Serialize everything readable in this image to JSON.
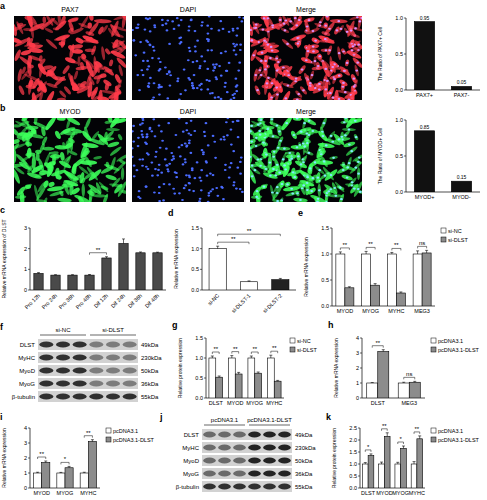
{
  "panels": [
    "a",
    "b",
    "c",
    "d",
    "e",
    "f",
    "g",
    "h",
    "i",
    "j",
    "k"
  ],
  "micrographs": [
    {
      "channels": [
        "PAX7",
        "DAPI",
        "Merge"
      ]
    },
    {
      "channels": [
        "MYOD",
        "DAPI",
        "Merge"
      ]
    }
  ],
  "blots": [
    {
      "conditions": [
        "si-NC",
        "si-DLST"
      ],
      "rows": [
        {
          "protein": "DLST",
          "size": "49kDa"
        },
        {
          "protein": "MyHC",
          "size": "230kDa"
        },
        {
          "protein": "MyoD",
          "size": "50kDa"
        },
        {
          "protein": "MyoG",
          "size": "36kDa"
        },
        {
          "protein": "β-tubulin",
          "size": "55kDa"
        }
      ]
    },
    {
      "conditions": [
        "pcDNA3.1",
        "pcDNA3.1-DLST"
      ],
      "rows": [
        {
          "protein": "DLST",
          "size": "49kDa"
        },
        {
          "protein": "MyHC",
          "size": "230kDa"
        },
        {
          "protein": "MyoD",
          "size": "50kDa"
        },
        {
          "protein": "MyoG",
          "size": "36kDa"
        },
        {
          "protein": "β-tubulin",
          "size": "55kDa"
        }
      ]
    }
  ],
  "chart_data": [
    {
      "type": "bar",
      "y_label": "The Ratio of PAX7+ Cell",
      "categories": [
        "PAX7+",
        "PAX7-"
      ],
      "values": [
        0.95,
        0.05
      ],
      "data_labels": true,
      "color": "#111111",
      "ylim": [
        0,
        1
      ],
      "yticks": [
        {
          "value": 0,
          "label": "0.0"
        },
        0.5,
        {
          "value": 1,
          "label": "1.0"
        }
      ]
    },
    {
      "type": "bar",
      "y_label": "The Ratio of MYOD+ Cell",
      "categories": [
        "MYOD+",
        "MYOD-"
      ],
      "values": [
        0.85,
        0.15
      ],
      "data_labels": true,
      "color": "#111111",
      "ylim": [
        0,
        1
      ],
      "yticks": [
        {
          "value": 0,
          "label": "0.0"
        },
        0.5,
        {
          "value": 1,
          "label": "1.0"
        }
      ]
    },
    {
      "type": "bar",
      "y_label": "Relative mRNA expression of DLST",
      "categories": [
        "Pro 12h",
        "Pro 24h",
        "Pro 36h",
        "Pro 48h",
        "Dif 12h",
        "Dif 24h",
        "Dif 36h",
        "Dif 48h"
      ],
      "values": [
        0.8,
        0.72,
        0.72,
        0.72,
        1.55,
        2.25,
        1.8,
        1.8
      ],
      "errors": [
        0.04,
        0.02,
        0.02,
        0.03,
        0.06,
        0.22,
        0.04,
        0.03
      ],
      "color": "#4a4a4a",
      "ylim": [
        0,
        3
      ],
      "yticks": [
        0,
        1,
        2,
        3
      ],
      "annotations": [
        {
          "text": "**",
          "from": "Pro 48h",
          "to": "Dif 12h"
        }
      ]
    },
    {
      "type": "bar",
      "y_label": "Relative mRNA expression",
      "categories": [
        "si-NC",
        "si-DLST-1",
        "si-DLST-2"
      ],
      "values": [
        1.0,
        0.2,
        0.25
      ],
      "errors": [
        0.06,
        0.02,
        0.03
      ],
      "colors": [
        "#ffffff",
        "#ffffff",
        "#222222"
      ],
      "ylim": [
        0,
        1.5
      ],
      "yticks": [
        {
          "value": 0,
          "label": "0.0"
        },
        0.5,
        {
          "value": 1,
          "label": "1.0"
        },
        1.5
      ],
      "annotations": [
        {
          "text": "**",
          "from": "si-NC",
          "to": "si-DLST-1"
        },
        {
          "text": "**",
          "from": "si-NC",
          "to": "si-DLST-2"
        }
      ]
    },
    {
      "type": "bar",
      "y_label": "Relative mRNA expression",
      "categories": [
        "MYOD",
        "MYOG",
        "MYHC",
        "MEG3"
      ],
      "series": [
        {
          "name": "si-NC",
          "color": "#ffffff",
          "values": [
            1,
            1,
            1,
            1
          ],
          "errors": [
            0.04,
            0.05,
            0.03,
            0.06
          ]
        },
        {
          "name": "si-DLST",
          "color": "#8c8c8c",
          "values": [
            0.35,
            0.4,
            0.25,
            1.02
          ],
          "errors": [
            0.02,
            0.03,
            0.02,
            0.05
          ]
        }
      ],
      "legend": "right",
      "ylim": [
        0,
        1.5
      ],
      "yticks": [
        {
          "value": 0,
          "label": "0.0"
        },
        0.5,
        {
          "value": 1,
          "label": "1.0"
        },
        1.5
      ],
      "annotations": [
        {
          "text": "**",
          "from": "MYOD",
          "to": "MYOD"
        },
        {
          "text": "**",
          "from": "MYOG",
          "to": "MYOG"
        },
        {
          "text": "**",
          "from": "MYHC",
          "to": "MYHC"
        },
        {
          "text": "ns",
          "from": "MEG3",
          "to": "MEG3"
        }
      ]
    },
    {
      "type": "bar",
      "y_label": "Relative protein expression",
      "categories": [
        "DLST",
        "MYOD",
        "MYOG",
        "MYHC"
      ],
      "series": [
        {
          "name": "si-NC",
          "color": "#ffffff",
          "values": [
            1,
            1,
            1,
            1
          ],
          "errors": [
            0.05,
            0.06,
            0.05,
            0.07
          ]
        },
        {
          "name": "si-DLST",
          "color": "#8c8c8c",
          "values": [
            0.52,
            0.6,
            0.62,
            0.42
          ],
          "errors": [
            0.03,
            0.04,
            0.03,
            0.02
          ]
        }
      ],
      "legend": "right",
      "ylim": [
        0,
        1.5
      ],
      "yticks": [
        {
          "value": 0,
          "label": "0.0"
        },
        0.5,
        {
          "value": 1,
          "label": "1.0"
        },
        1.5
      ],
      "annotations": [
        {
          "text": "**",
          "from": "DLST",
          "to": "DLST"
        },
        {
          "text": "**",
          "from": "MYOD",
          "to": "MYOD"
        },
        {
          "text": "**",
          "from": "MYOG",
          "to": "MYOG"
        },
        {
          "text": "**",
          "from": "MYHC",
          "to": "MYHC"
        }
      ]
    },
    {
      "type": "bar",
      "y_label": "Relative mRNA expression",
      "categories": [
        "DLST",
        "MEG3"
      ],
      "series": [
        {
          "name": "pcDNA3.1",
          "color": "#ffffff",
          "values": [
            1,
            1
          ],
          "errors": [
            0.03,
            0.05
          ]
        },
        {
          "name": "pcDNA3.1-DLST",
          "color": "#8c8c8c",
          "values": [
            3.1,
            1.05
          ],
          "errors": [
            0.12,
            0.06
          ]
        }
      ],
      "legend": "right",
      "ylim": [
        0,
        4
      ],
      "yticks": [
        0,
        1,
        2,
        3,
        4
      ],
      "annotations": [
        {
          "text": "**",
          "from": "DLST",
          "to": "DLST"
        },
        {
          "text": "ns",
          "from": "MEG3",
          "to": "MEG3"
        }
      ]
    },
    {
      "type": "bar",
      "y_label": "Relative mRNA expression",
      "categories": [
        "MYOD",
        "MYOG",
        "MYHC"
      ],
      "series": [
        {
          "name": "pcDNA3.1",
          "color": "#ffffff",
          "values": [
            1,
            1,
            1
          ],
          "errors": [
            0.05,
            0.04,
            0.05
          ]
        },
        {
          "name": "pcDNA3.1-DLST",
          "color": "#8c8c8c",
          "values": [
            1.7,
            1.35,
            3.1
          ],
          "errors": [
            0.1,
            0.09,
            0.12
          ]
        }
      ],
      "legend": "right",
      "ylim": [
        0,
        4
      ],
      "yticks": [
        0,
        1,
        2,
        3,
        4
      ],
      "annotations": [
        {
          "text": "**",
          "from": "MYOD",
          "to": "MYOD"
        },
        {
          "text": "*",
          "from": "MYOG",
          "to": "MYOG"
        },
        {
          "text": "**",
          "from": "MYHC",
          "to": "MYHC"
        }
      ]
    },
    {
      "type": "bar",
      "y_label": "Relative protein expression",
      "categories": [
        "DLST",
        "MYOD",
        "MYOG",
        "MYHC"
      ],
      "series": [
        {
          "name": "pcDNA3.1",
          "color": "#ffffff",
          "values": [
            1,
            1,
            1,
            1
          ],
          "errors": [
            0.06,
            0.08,
            0.07,
            0.1
          ]
        },
        {
          "name": "pcDNA3.1-DLST",
          "color": "#8c8c8c",
          "values": [
            1.35,
            2.15,
            1.65,
            2.05
          ],
          "errors": [
            0.07,
            0.15,
            0.1,
            0.12
          ]
        }
      ],
      "legend": "right",
      "ylim": [
        0,
        2.5
      ],
      "yticks": [
        {
          "value": 0,
          "label": "0.0"
        },
        0.5,
        {
          "value": 1,
          "label": "1.0"
        },
        1.5,
        {
          "value": 2,
          "label": "2.0"
        },
        2.5
      ],
      "annotations": [
        {
          "text": "*",
          "from": "DLST",
          "to": "DLST"
        },
        {
          "text": "**",
          "from": "MYOD",
          "to": "MYOD"
        },
        {
          "text": "*",
          "from": "MYOG",
          "to": "MYOG"
        },
        {
          "text": "**",
          "from": "MYHC",
          "to": "MYHC"
        }
      ]
    }
  ]
}
